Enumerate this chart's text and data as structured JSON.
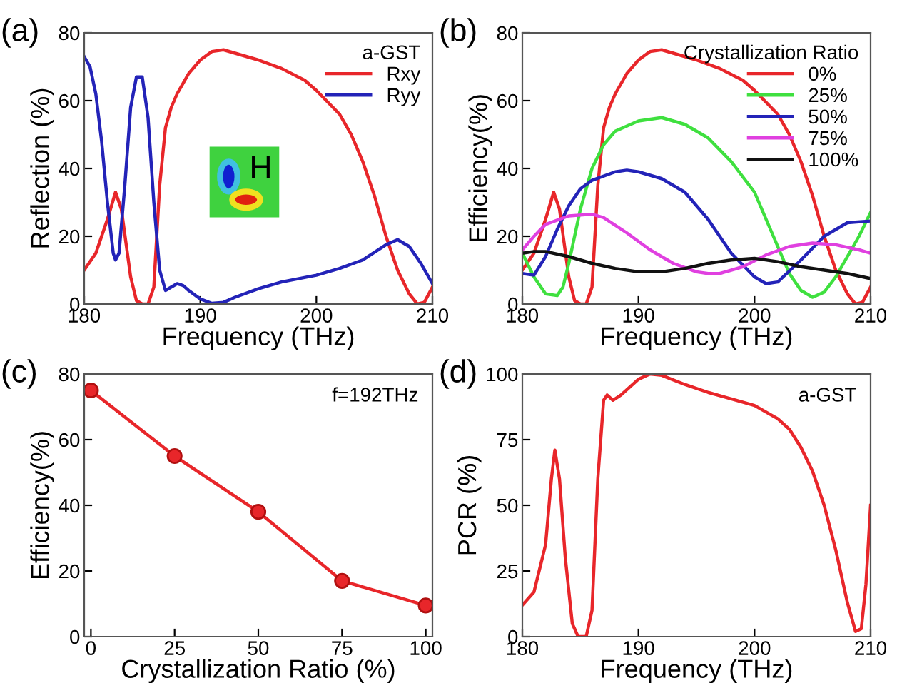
{
  "chart_data": [
    {
      "type": "line",
      "xlabel": "Frequency (THz)",
      "ylabel": "Reflection (%)",
      "legend_title": "a-GST",
      "legend": "top right",
      "grid": false,
      "xlim": [
        180,
        210
      ],
      "xticks": [
        180,
        190,
        200,
        210
      ],
      "ylim": [
        0,
        80
      ],
      "yticks": [
        0,
        20,
        40,
        60,
        80
      ],
      "annotations": [
        "(a)",
        "H"
      ],
      "series": [
        {
          "name": "Rxy",
          "color": "#e8262a",
          "x": [
            180,
            181,
            182,
            182.7,
            183.2,
            184,
            184.5,
            185,
            185.5,
            186,
            186.5,
            187,
            187.5,
            188,
            189,
            190,
            191,
            192,
            193,
            195,
            197,
            199,
            200,
            202,
            203,
            204,
            205,
            206,
            207,
            208,
            208.7,
            209.3,
            210
          ],
          "values": [
            10,
            15,
            25,
            33,
            28,
            8,
            1,
            0,
            0,
            5,
            35,
            52,
            58,
            62,
            68,
            72,
            74.5,
            75,
            74,
            72,
            69.5,
            66,
            63,
            56,
            50,
            42,
            32,
            20,
            10,
            3,
            0,
            0.5,
            5
          ]
        },
        {
          "name": "Ryy",
          "color": "#2323b8",
          "x": [
            180,
            180.5,
            181,
            181.5,
            182,
            182.5,
            182.7,
            183,
            183.5,
            184,
            184.5,
            185,
            185.5,
            186,
            186.5,
            187,
            187.5,
            188,
            188.5,
            189,
            190,
            191,
            192,
            193,
            195,
            197,
            200,
            202,
            204,
            206,
            207,
            208,
            209,
            210
          ],
          "values": [
            73,
            70,
            62,
            48,
            30,
            15,
            13,
            15,
            35,
            58,
            67,
            67,
            55,
            30,
            10,
            4,
            5,
            6,
            5.5,
            4,
            1.5,
            0.2,
            0.5,
            2,
            4.5,
            6.5,
            8.5,
            10.5,
            13,
            17.5,
            19,
            17,
            12,
            6
          ]
        }
      ]
    },
    {
      "type": "line",
      "xlabel": "Frequency (THz)",
      "ylabel": "Efficiency(%)",
      "legend_title": "Crystallization Ratio",
      "legend": "top right",
      "grid": false,
      "xlim": [
        180,
        210
      ],
      "xticks": [
        180,
        190,
        200,
        210
      ],
      "ylim": [
        0,
        80
      ],
      "yticks": [
        0,
        20,
        40,
        60,
        80
      ],
      "annotations": [
        "(b)"
      ],
      "series": [
        {
          "name": "0%",
          "color": "#e8262a",
          "x": [
            180,
            181,
            182,
            182.7,
            183.2,
            184,
            184.5,
            185,
            185.5,
            186,
            186.5,
            187,
            187.5,
            188,
            189,
            190,
            191,
            192,
            193,
            195,
            197,
            199,
            200,
            202,
            203,
            204,
            205,
            206,
            207,
            208,
            208.7,
            209.3,
            210
          ],
          "values": [
            10,
            15,
            25,
            33,
            28,
            8,
            1,
            0,
            0,
            5,
            35,
            52,
            58,
            62,
            68,
            72,
            74.5,
            75,
            74,
            72,
            69.5,
            66,
            63,
            56,
            50,
            42,
            32,
            20,
            10,
            3,
            0,
            0.5,
            5
          ]
        },
        {
          "name": "25%",
          "color": "#3fe03f",
          "x": [
            180,
            181,
            182,
            183,
            183.5,
            184,
            185,
            186,
            187,
            188,
            190,
            192,
            194,
            196,
            198,
            200,
            201,
            202,
            203,
            204,
            205,
            206,
            207,
            208,
            209,
            210
          ],
          "values": [
            15,
            8,
            3,
            2.5,
            5,
            12,
            28,
            40,
            47,
            51,
            54,
            55,
            53,
            49,
            42,
            33,
            25,
            17,
            9,
            4,
            2,
            3.5,
            8,
            14,
            20,
            27
          ]
        },
        {
          "name": "50%",
          "color": "#2323b8",
          "x": [
            180,
            181,
            182,
            183,
            184,
            185,
            186,
            188,
            189,
            190,
            192,
            194,
            196,
            198,
            200,
            201,
            202,
            204,
            206,
            208,
            210
          ],
          "values": [
            9,
            8.5,
            14,
            22,
            29,
            34,
            36.5,
            39,
            39.5,
            39,
            37,
            33,
            25,
            15,
            8,
            6,
            6.5,
            13,
            20,
            24,
            24.5
          ]
        },
        {
          "name": "75%",
          "color": "#e040e0",
          "x": [
            180,
            181,
            182,
            184,
            186,
            187,
            189,
            191,
            193,
            195,
            196,
            197,
            199,
            201,
            203,
            205,
            207,
            209,
            210
          ],
          "values": [
            16,
            20,
            23.5,
            26,
            26.5,
            25.5,
            21,
            16,
            12,
            9.5,
            9,
            9,
            11,
            14.5,
            17,
            18,
            17.5,
            16,
            15
          ]
        },
        {
          "name": "100%",
          "color": "#111111",
          "x": [
            180,
            181,
            182,
            184,
            186,
            188,
            190,
            192,
            194,
            196,
            198,
            200,
            202,
            204,
            206,
            208,
            210
          ],
          "values": [
            15,
            15.5,
            15.5,
            14,
            12,
            10.5,
            9.5,
            9.5,
            10.5,
            12,
            13,
            13.5,
            12.5,
            11,
            10,
            9,
            7.5
          ]
        }
      ]
    },
    {
      "type": "line",
      "xlabel": "Crystallization Ratio (%)",
      "ylabel": "Efficiency(%)",
      "grid": false,
      "marker": "circle",
      "xlim": [
        -2,
        102
      ],
      "xticks": [
        0,
        25,
        50,
        75,
        100
      ],
      "ylim": [
        0,
        80
      ],
      "yticks": [
        0,
        20,
        40,
        60,
        80
      ],
      "annotations": [
        "(c)",
        "f=192THz"
      ],
      "series": [
        {
          "color": "#e8262a",
          "x": [
            0,
            25,
            50,
            75,
            100
          ],
          "values": [
            75,
            55,
            38,
            17,
            9.5
          ]
        }
      ]
    },
    {
      "type": "line",
      "xlabel": "Frequency (THz)",
      "ylabel": "PCR (%)",
      "grid": false,
      "xlim": [
        180,
        210
      ],
      "xticks": [
        180,
        190,
        200,
        210
      ],
      "ylim": [
        0,
        100
      ],
      "yticks": [
        0,
        25,
        50,
        75,
        100
      ],
      "annotations": [
        "(d)",
        "a-GST"
      ],
      "series": [
        {
          "color": "#e8262a",
          "x": [
            180,
            181,
            182,
            182.5,
            182.8,
            183.2,
            183.7,
            184.3,
            184.8,
            185.5,
            186,
            186.5,
            187,
            187.3,
            187.8,
            188.5,
            190,
            191,
            192,
            194,
            196,
            198,
            200,
            202,
            203,
            204,
            205,
            206,
            207,
            208,
            208.7,
            209.2,
            209.6,
            210
          ],
          "values": [
            12,
            17,
            35,
            60,
            71,
            60,
            30,
            5,
            0,
            0,
            10,
            60,
            90,
            92,
            90,
            92,
            98,
            100,
            99.5,
            96,
            93,
            90.5,
            88,
            83,
            79,
            72,
            63,
            50,
            33,
            13,
            2,
            3,
            20,
            50
          ]
        }
      ]
    }
  ]
}
